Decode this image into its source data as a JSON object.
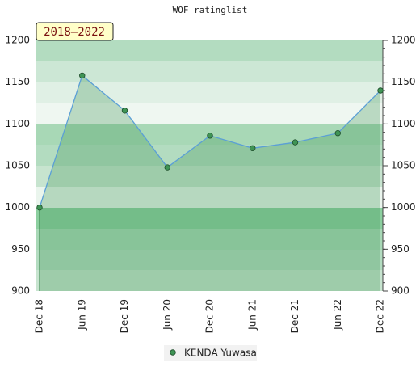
{
  "chart_data": {
    "type": "line",
    "title": "WOF ratinglist",
    "annotation": "2018–2022",
    "categories": [
      "Dec 18",
      "Jun 19",
      "Dec 19",
      "Jun 20",
      "Dec 20",
      "Jun 21",
      "Dec 21",
      "Jun 22",
      "Dec 22"
    ],
    "series": [
      {
        "name": "KENDA Yuwasa",
        "color": "#3f9455",
        "line_color": "#5b9fd6",
        "values": [
          1000,
          1158,
          1116,
          1048,
          1086,
          1071,
          1078,
          1089,
          1140
        ]
      }
    ],
    "ylim": [
      900,
      1200
    ],
    "yticks": [
      900,
      950,
      1000,
      1050,
      1100,
      1150,
      1200
    ]
  }
}
